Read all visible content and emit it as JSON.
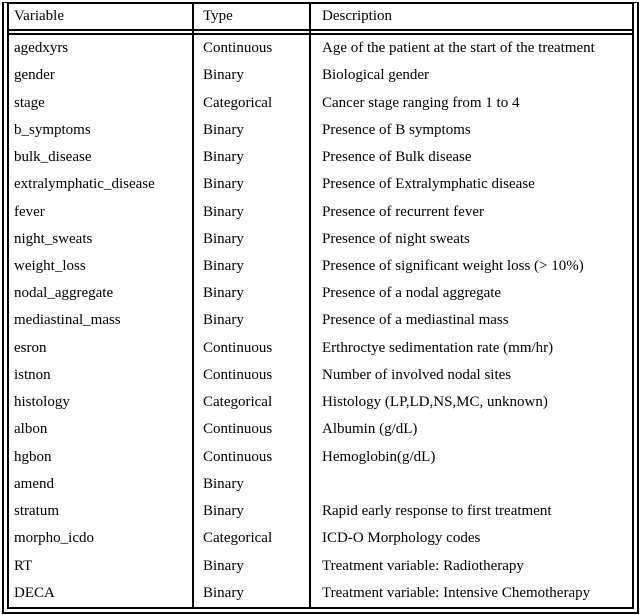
{
  "table": {
    "columns": [
      "Variable",
      "Type",
      "Description"
    ],
    "rows": [
      {
        "variable": "agedxyrs",
        "type": "Continuous",
        "description": "Age of the patient at the start of the treatment"
      },
      {
        "variable": "gender",
        "type": "Binary",
        "description": "Biological gender"
      },
      {
        "variable": "stage",
        "type": "Categorical",
        "description": "Cancer stage ranging from 1 to 4"
      },
      {
        "variable": "b_symptoms",
        "type": "Binary",
        "description": "Presence of B symptoms"
      },
      {
        "variable": "bulk_disease",
        "type": "Binary",
        "description": "Presence of Bulk disease"
      },
      {
        "variable": "extralymphatic_disease",
        "type": "Binary",
        "description": "Presence of Extralymphatic disease"
      },
      {
        "variable": "fever",
        "type": "Binary",
        "description": "Presence of recurrent fever"
      },
      {
        "variable": "night_sweats",
        "type": "Binary",
        "description": "Presence of night sweats"
      },
      {
        "variable": "weight_loss",
        "type": "Binary",
        "description": "Presence of significant weight loss (> 10%)"
      },
      {
        "variable": "nodal_aggregate",
        "type": "Binary",
        "description": "Presence of a nodal aggregate"
      },
      {
        "variable": "mediastinal_mass",
        "type": "Binary",
        "description": "Presence of a mediastinal mass"
      },
      {
        "variable": "esron",
        "type": "Continuous",
        "description": "Erthroctye sedimentation rate (mm/hr)"
      },
      {
        "variable": "istnon",
        "type": "Continuous",
        "description": "Number of involved nodal sites"
      },
      {
        "variable": "histology",
        "type": "Categorical",
        "description": "Histology (LP,LD,NS,MC, unknown)"
      },
      {
        "variable": "albon",
        "type": "Continuous",
        "description": "Albumin (g/dL)"
      },
      {
        "variable": "hgbon",
        "type": "Continuous",
        "description": "Hemoglobin(g/dL)"
      },
      {
        "variable": "amend",
        "type": "Binary",
        "description": ""
      },
      {
        "variable": "stratum",
        "type": "Binary",
        "description": "Rapid early response to first treatment"
      },
      {
        "variable": "morpho_icdo",
        "type": "Categorical",
        "description": "ICD-O Morphology codes"
      },
      {
        "variable": "RT",
        "type": "Binary",
        "description": "Treatment variable: Radiotherapy"
      },
      {
        "variable": "DECA",
        "type": "Binary",
        "description": "Treatment variable: Intensive Chemotherapy"
      }
    ]
  },
  "colors": {
    "border": "#000000",
    "text": "#000000",
    "background": "#ffffff"
  }
}
